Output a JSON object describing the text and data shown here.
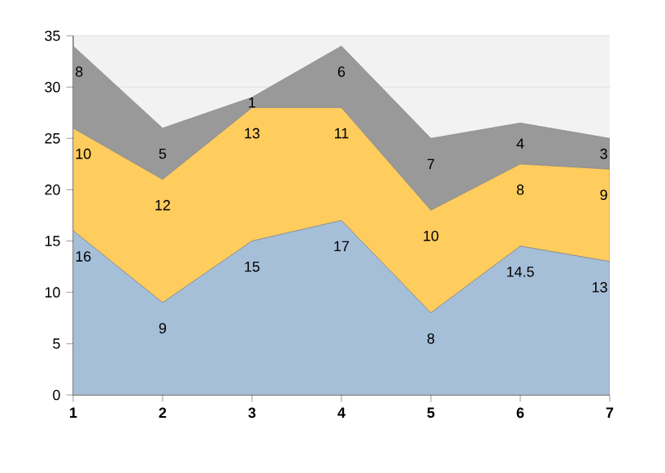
{
  "chart_data": {
    "type": "area",
    "stacked": true,
    "data_labels": true,
    "grid": "y",
    "x": [
      1,
      2,
      3,
      4,
      5,
      6,
      7
    ],
    "xlim": [
      1,
      7
    ],
    "xticks": [
      1,
      2,
      3,
      4,
      5,
      6,
      7
    ],
    "ylim": [
      0,
      35
    ],
    "yticks": [
      0,
      5,
      10,
      15,
      20,
      25,
      30,
      35
    ],
    "series": [
      {
        "color": "#a6bfd8",
        "values": [
          16,
          9,
          15,
          17,
          8,
          14.5,
          13
        ]
      },
      {
        "color": "#ffcc5e",
        "values": [
          10,
          12,
          13,
          11,
          10,
          8,
          9
        ]
      },
      {
        "color": "#999999",
        "values": [
          8,
          5,
          1,
          6,
          7,
          4,
          3
        ]
      }
    ]
  }
}
